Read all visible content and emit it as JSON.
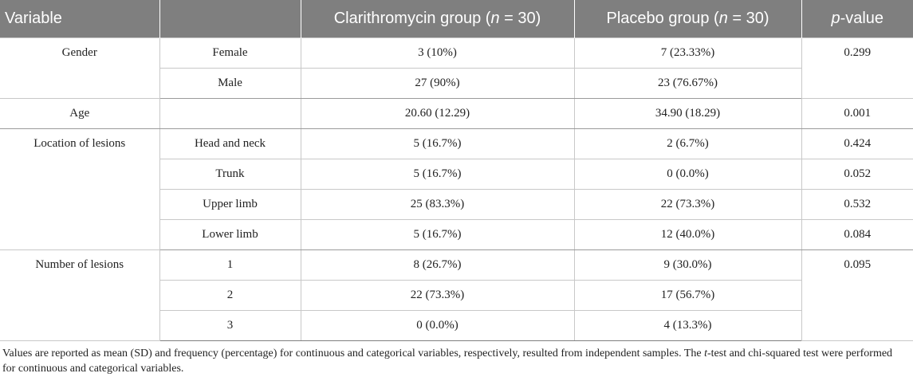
{
  "header": {
    "variable": "Variable",
    "clarithromycin_prefix": "Clarithromycin group (",
    "clarithromycin_n": "n",
    "clarithromycin_suffix": " = 30)",
    "placebo_prefix": "Placebo group (",
    "placebo_n": "n",
    "placebo_suffix": " = 30)",
    "p_italic": "p",
    "p_suffix": "-value"
  },
  "rows": {
    "gender": {
      "label": "Gender",
      "female": {
        "sub": "Female",
        "clar": "3 (10%)",
        "placebo": "7 (23.33%)"
      },
      "male": {
        "sub": "Male",
        "clar": "27 (90%)",
        "placebo": "23 (76.67%)"
      },
      "p": "0.299"
    },
    "age": {
      "label": "Age",
      "sub": "",
      "clar": "20.60 (12.29)",
      "placebo": "34.90 (18.29)",
      "p": "0.001"
    },
    "location": {
      "label": "Location of lesions",
      "head": {
        "sub": "Head and neck",
        "clar": "5 (16.7%)",
        "placebo": "2 (6.7%)",
        "p": "0.424"
      },
      "trunk": {
        "sub": "Trunk",
        "clar": "5 (16.7%)",
        "placebo": "0 (0.0%)",
        "p": "0.052"
      },
      "upper": {
        "sub": "Upper limb",
        "clar": "25 (83.3%)",
        "placebo": "22 (73.3%)",
        "p": "0.532"
      },
      "lower": {
        "sub": "Lower limb",
        "clar": "5 (16.7%)",
        "placebo": "12 (40.0%)",
        "p": "0.084"
      }
    },
    "number": {
      "label": "Number of lesions",
      "one": {
        "sub": "1",
        "clar": "8 (26.7%)",
        "placebo": "9 (30.0%)"
      },
      "two": {
        "sub": "2",
        "clar": "22 (73.3%)",
        "placebo": "17 (56.7%)"
      },
      "three": {
        "sub": "3",
        "clar": "0 (0.0%)",
        "placebo": "4 (13.3%)"
      },
      "p": "0.095"
    }
  },
  "footnote": {
    "part1": "Values are reported as mean (SD) and frequency (percentage) for continuous and categorical variables, respectively, resulted from independent samples. The ",
    "t_italic": "t",
    "part2": "-test and chi-squared test were performed for continuous and categorical variables."
  },
  "colors": {
    "header_bg": "#7f7f7f",
    "header_text": "#ffffff",
    "border": "#c8c8c8"
  }
}
